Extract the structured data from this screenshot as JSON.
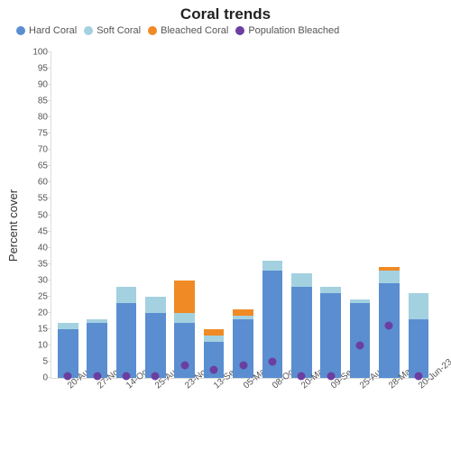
{
  "chart": {
    "title": "Coral trends",
    "title_fontsize": 17,
    "ylabel": "Percent cover",
    "ylabel_fontsize": 13,
    "type": "stacked-bar-with-points",
    "background_color": "#ffffff",
    "axis_color": "#dddddd",
    "tick_font_color": "#555555",
    "ylim": [
      0,
      100
    ],
    "ytick_step": 5,
    "bar_width": 0.7,
    "series": [
      {
        "key": "hard",
        "label": "Hard Coral",
        "color": "#5a8ed1",
        "kind": "bar"
      },
      {
        "key": "soft",
        "label": "Soft Coral",
        "color": "#a3d1e0",
        "kind": "bar"
      },
      {
        "key": "bleached",
        "label": "Bleached Coral",
        "color": "#f08a24",
        "kind": "bar"
      },
      {
        "key": "pop",
        "label": "Population Bleached",
        "color": "#6b3fa0",
        "kind": "point"
      }
    ],
    "categories": [
      "20-Aug-09",
      "27-Nov-11",
      "14-Oct-12",
      "25-Aug-13",
      "23-Nov-14",
      "13-Sep-15",
      "05-Mar-16",
      "08-Oct-16",
      "20-May-17",
      "09-Sep-17",
      "25-Aug-18",
      "28-Mar-21",
      "20-Jun-23"
    ],
    "data": {
      "hard": [
        15,
        17,
        23,
        20,
        17,
        11,
        18,
        33,
        28,
        26,
        23,
        29,
        18
      ],
      "soft": [
        2,
        1,
        5,
        5,
        3,
        2,
        1,
        3,
        4,
        2,
        1,
        4,
        8
      ],
      "bleached": [
        0,
        0,
        0,
        0,
        10,
        2,
        2,
        0,
        0,
        0,
        0,
        1,
        0
      ],
      "pop": [
        0.5,
        0.5,
        0.5,
        0.5,
        4,
        2.5,
        4,
        5,
        0.5,
        0.5,
        10,
        16,
        0.5
      ]
    }
  }
}
